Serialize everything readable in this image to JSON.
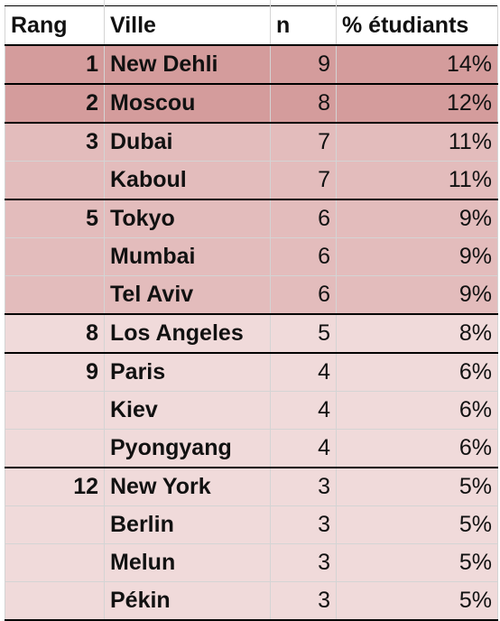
{
  "headers": {
    "rang": "Rang",
    "ville": "Ville",
    "n": "n",
    "pct": "% étudiants"
  },
  "rows": [
    {
      "rang": "1",
      "ville": "New Dehli",
      "n": "9",
      "pct": "14%"
    },
    {
      "rang": "2",
      "ville": "Moscou",
      "n": "8",
      "pct": "12%"
    },
    {
      "rang": "3",
      "ville": "Dubai",
      "n": "7",
      "pct": "11%"
    },
    {
      "rang": "",
      "ville": "Kaboul",
      "n": "7",
      "pct": "11%"
    },
    {
      "rang": "5",
      "ville": "Tokyo",
      "n": "6",
      "pct": "9%"
    },
    {
      "rang": "",
      "ville": "Mumbai",
      "n": "6",
      "pct": "9%"
    },
    {
      "rang": "",
      "ville": "Tel Aviv",
      "n": "6",
      "pct": "9%"
    },
    {
      "rang": "8",
      "ville": "Los Angeles",
      "n": "5",
      "pct": "8%"
    },
    {
      "rang": "9",
      "ville": "Paris",
      "n": "4",
      "pct": "6%"
    },
    {
      "rang": "",
      "ville": "Kiev",
      "n": "4",
      "pct": "6%"
    },
    {
      "rang": "",
      "ville": "Pyongyang",
      "n": "4",
      "pct": "6%"
    },
    {
      "rang": "12",
      "ville": "New York",
      "n": "3",
      "pct": "5%"
    },
    {
      "rang": "",
      "ville": "Berlin",
      "n": "3",
      "pct": "5%"
    },
    {
      "rang": "",
      "ville": "Melun",
      "n": "3",
      "pct": "5%"
    },
    {
      "rang": "",
      "ville": "Pékin",
      "n": "3",
      "pct": "5%"
    }
  ],
  "colors": {
    "tier1": "#d49c9c",
    "tier2": "#e3bcbc",
    "tier3": "#f0dada"
  }
}
